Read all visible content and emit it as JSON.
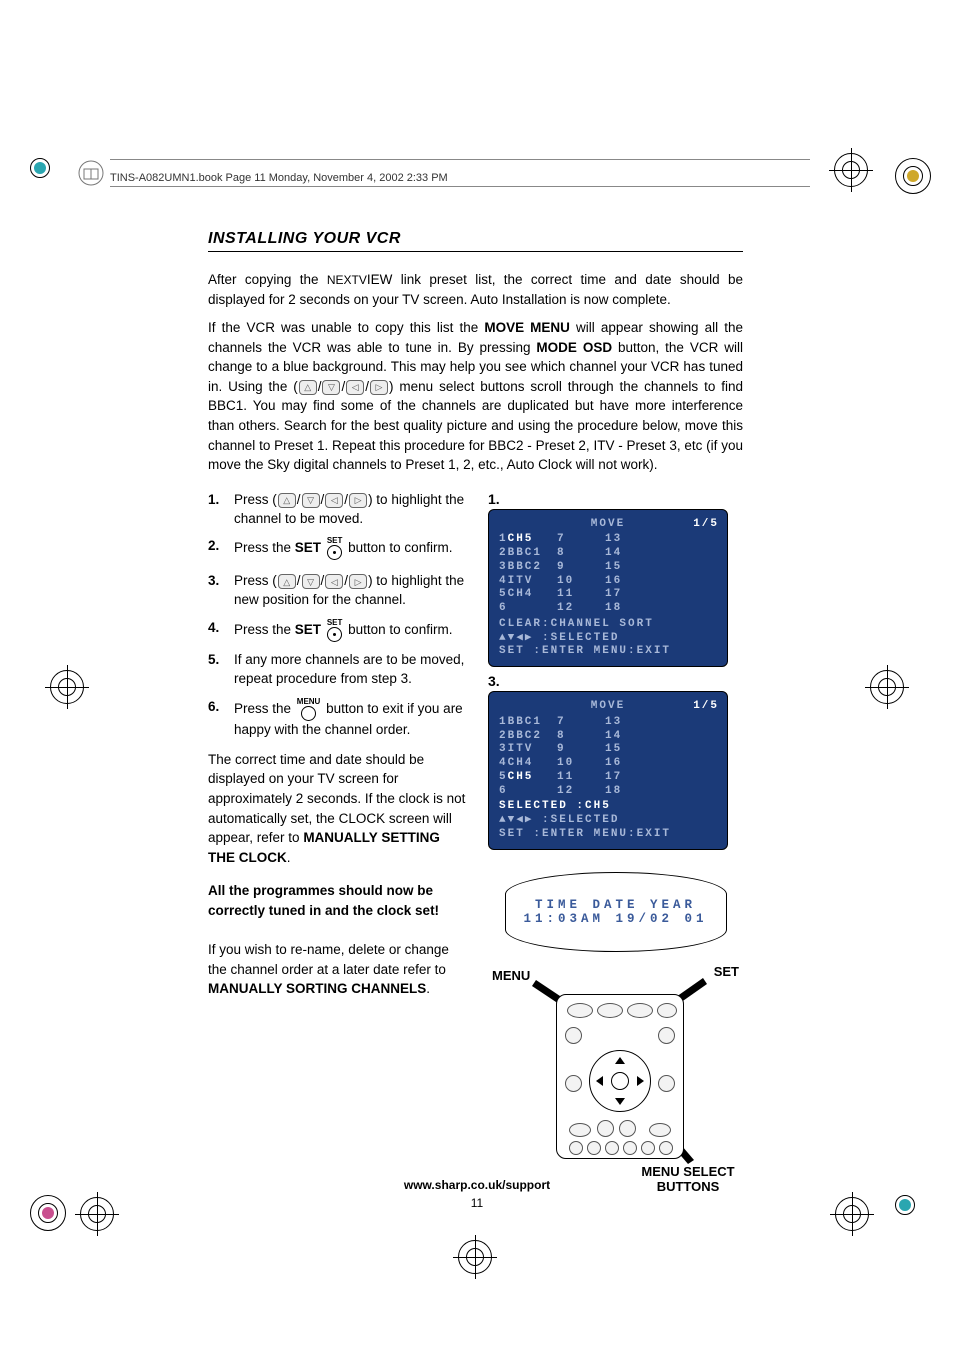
{
  "header": {
    "file_line": "TINS-A082UMN1.book  Page 11  Monday, November 4, 2002  2:33 PM"
  },
  "title": "INSTALLING YOUR VCR",
  "intro": {
    "p1a": "After copying the ",
    "nextview": "NEXTV",
    "p1b": "IEW link preset list, the correct time and date should be displayed for 2 seconds on your TV screen. Auto Installation is now complete.",
    "p2a": "If the VCR was unable to copy this list the ",
    "move_menu": "MOVE MENU",
    "p2b": " will appear showing all the channels the VCR was able to tune in. By pressing ",
    "mode_osd": "MODE OSD",
    "p2c": " button, the VCR will change to a blue background. This may help you see which channel your VCR has tuned in. Using the (",
    "p2d": ") menu select buttons scroll through the channels to find BBC1. You may find some of the channels are duplicated but have more interference than others. Search for the best quality picture and using the procedure below, move this channel to Preset 1. Repeat this procedure for BBC2 - Preset 2, ITV - Preset 3, etc (if you move the Sky digital channels to Preset 1, 2, etc., Auto Clock will not work)."
  },
  "steps": [
    {
      "num": "1.",
      "a": "Press (",
      "b": ") to highlight the channel to be moved."
    },
    {
      "num": "2.",
      "a": "Press the ",
      "set": "SET",
      "b": " button to confirm."
    },
    {
      "num": "3.",
      "a": "Press (",
      "b": ") to highlight the new position for the channel."
    },
    {
      "num": "4.",
      "a": "Press the ",
      "set": "SET",
      "b": " button to confirm."
    },
    {
      "num": "5.",
      "a": "If any more channels are to be moved, repeat procedure from step 3."
    },
    {
      "num": "6.",
      "a": "Press the ",
      "b": " button to exit if you are happy with the channel order."
    }
  ],
  "after_steps": {
    "p1a": "The correct time and date should be displayed on your TV screen for approximately 2 seconds. If the clock is not automatically set, the CLOCK screen will appear, refer to ",
    "bold1": "MANUALLY SETTING THE CLOCK",
    "p1b": ".",
    "bold_block": "All the programmes should now be correctly tuned in and the clock set!",
    "p2a": "If you wish to re-name, delete or change the channel order at a later date refer to ",
    "bold2": "MANUALLY SORTING CHANNELS",
    "p2b": "."
  },
  "osd1": {
    "label": "1.",
    "title": "MOVE",
    "page": "1/5",
    "rows": [
      {
        "c1_num": "1",
        "c1_name": "CH5",
        "hl": true,
        "c2": "7",
        "c3": "13"
      },
      {
        "c1_num": "2",
        "c1_name": "BBC1",
        "c2": "8",
        "c3": "14"
      },
      {
        "c1_num": "3",
        "c1_name": "BBC2",
        "c2": "9",
        "c3": "15"
      },
      {
        "c1_num": "4",
        "c1_name": "ITV",
        "c2": "10",
        "c3": "16"
      },
      {
        "c1_num": "5",
        "c1_name": "CH4",
        "c2": "11",
        "c3": "17"
      },
      {
        "c1_num": "6",
        "c1_name": "",
        "c2": "12",
        "c3": "18"
      }
    ],
    "bot1": "CLEAR:CHANNEL SORT",
    "bot2": "▲▼◀▶    :SELECTED",
    "bot3": "SET :ENTER   MENU:EXIT"
  },
  "osd3": {
    "label": "3.",
    "title": "MOVE",
    "page": "1/5",
    "rows": [
      {
        "c1_num": "1",
        "c1_name": "BBC1",
        "c2": "7",
        "c3": "13"
      },
      {
        "c1_num": "2",
        "c1_name": "BBC2",
        "c2": "8",
        "c3": "14"
      },
      {
        "c1_num": "3",
        "c1_name": "ITV",
        "c2": "9",
        "c3": "15"
      },
      {
        "c1_num": "4",
        "c1_name": "CH4",
        "c2": "10",
        "c3": "16"
      },
      {
        "c1_num": "5",
        "c1_name": "CH5",
        "hl": true,
        "c2": "11",
        "c3": "17"
      },
      {
        "c1_num": "6",
        "c1_name": "",
        "c2": "12",
        "c3": "18"
      }
    ],
    "bot1": "SELECTED  :CH5",
    "bot2": "▲▼◀▶    :SELECTED",
    "bot3": "SET :ENTER   MENU:EXIT"
  },
  "timebox": {
    "line1": "TIME   DATE   YEAR",
    "line2": "11:03AM 19/02   01"
  },
  "remote": {
    "menu": "MENU",
    "set": "SET",
    "caption1": "MENU SELECT",
    "caption2": "BUTTONS"
  },
  "footer": {
    "url": "www.sharp.co.uk/support",
    "page": "11"
  },
  "colors": {
    "osd_bg": "#1b3a78",
    "osd_dim": "#a8b8d8",
    "osd_hl": "#ffffff",
    "time_text": "#3a5a9a",
    "corner_cyan": "#2aa6b0",
    "corner_magenta": "#c94f8f",
    "corner_yellow": "#cfa82a"
  }
}
